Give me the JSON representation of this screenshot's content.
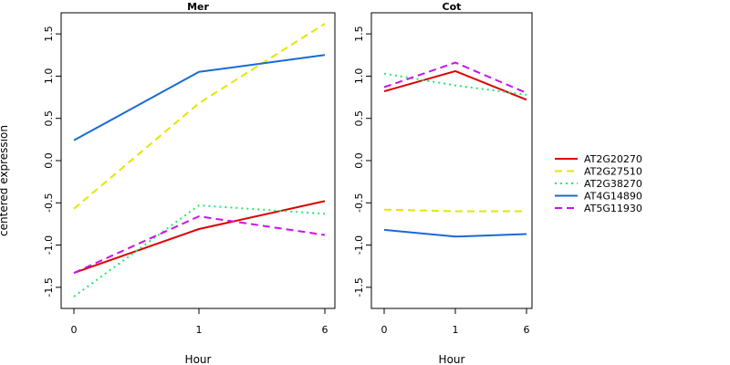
{
  "chart_data": {
    "type": "line",
    "ylabel": "centered expression",
    "xlabel": "Hour",
    "categories": [
      "0",
      "1",
      "6"
    ],
    "ylim": [
      -1.75,
      1.75
    ],
    "yticks": [
      "-1.5",
      "-1.0",
      "-0.5",
      "0.0",
      "0.5",
      "1.0",
      "1.5"
    ],
    "legend_position": "right",
    "grid": false,
    "series_styles": [
      {
        "name": "AT2G20270",
        "color": "#dd0000",
        "dash": "solid"
      },
      {
        "name": "AT2G27510",
        "color": "#e3e600",
        "dash": "dashed"
      },
      {
        "name": "AT2G38270",
        "color": "#22e86e",
        "dash": "dotted"
      },
      {
        "name": "AT4G14890",
        "color": "#1a6ad4",
        "dash": "solid"
      },
      {
        "name": "AT5G11930",
        "color": "#cc11ee",
        "dash": "dashed"
      }
    ],
    "panels": [
      {
        "title": "Mer",
        "series": [
          {
            "name": "AT2G20270",
            "values": [
              -1.33,
              -0.81,
              -0.48
            ]
          },
          {
            "name": "AT2G27510",
            "values": [
              -0.57,
              0.68,
              1.62
            ]
          },
          {
            "name": "AT2G38270",
            "values": [
              -1.61,
              -0.53,
              -0.63
            ]
          },
          {
            "name": "AT4G14890",
            "values": [
              0.24,
              1.05,
              1.25
            ]
          },
          {
            "name": "AT5G11930",
            "values": [
              -1.33,
              -0.66,
              -0.88
            ]
          }
        ]
      },
      {
        "title": "Cot",
        "series": [
          {
            "name": "AT2G20270",
            "values": [
              0.82,
              1.06,
              0.72
            ]
          },
          {
            "name": "AT2G27510",
            "values": [
              -0.58,
              -0.6,
              -0.6
            ]
          },
          {
            "name": "AT2G38270",
            "values": [
              1.03,
              0.89,
              0.78
            ]
          },
          {
            "name": "AT4G14890",
            "values": [
              -0.82,
              -0.9,
              -0.87
            ]
          },
          {
            "name": "AT5G11930",
            "values": [
              0.87,
              1.16,
              0.8
            ]
          }
        ]
      }
    ]
  }
}
